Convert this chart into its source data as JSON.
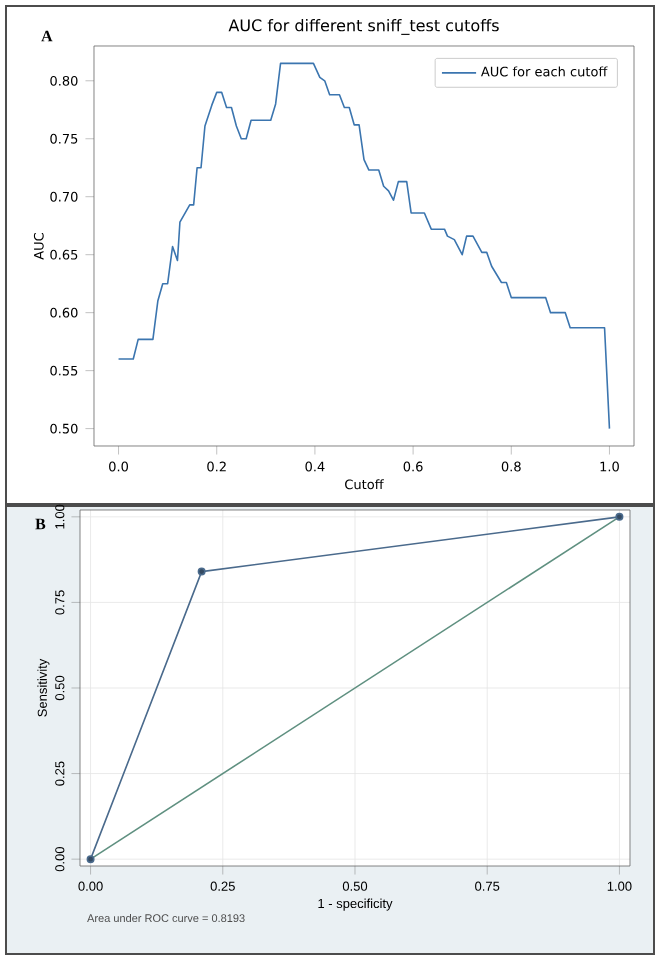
{
  "chart_data": [
    {
      "type": "line",
      "title": "AUC for different sniff_test cutoffs",
      "xlabel": "Cutoff",
      "ylabel": "AUC",
      "annotations": [
        "A"
      ],
      "xlim": [
        -0.05,
        1.05
      ],
      "ylim": [
        0.485,
        0.83
      ],
      "xticks": [
        {
          "value": 0,
          "label": "0.0"
        },
        {
          "value": 0.2,
          "label": "0.2"
        },
        {
          "value": 0.4,
          "label": "0.4"
        },
        {
          "value": 0.6,
          "label": "0.6"
        },
        {
          "value": 0.8,
          "label": "0.8"
        },
        {
          "value": 1,
          "label": "1.0"
        }
      ],
      "yticks": [
        {
          "value": 0.5,
          "label": "0.50"
        },
        {
          "value": 0.55,
          "label": "0.55"
        },
        {
          "value": 0.6,
          "label": "0.60"
        },
        {
          "value": 0.65,
          "label": "0.65"
        },
        {
          "value": 0.7,
          "label": "0.70"
        },
        {
          "value": 0.75,
          "label": "0.75"
        },
        {
          "value": 0.8,
          "label": "0.80"
        }
      ],
      "legend": "top right",
      "series": [
        {
          "name": "AUC for each cutoff",
          "color": "#3b75af",
          "x": [
            0,
            0.03,
            0.04,
            0.07,
            0.08,
            0.09,
            0.1,
            0.11,
            0.12,
            0.125,
            0.145,
            0.153,
            0.16,
            0.168,
            0.176,
            0.19,
            0.2,
            0.21,
            0.22,
            0.23,
            0.24,
            0.25,
            0.26,
            0.27,
            0.31,
            0.32,
            0.33,
            0.397,
            0.41,
            0.42,
            0.43,
            0.45,
            0.46,
            0.47,
            0.48,
            0.49,
            0.5,
            0.51,
            0.53,
            0.54,
            0.55,
            0.56,
            0.57,
            0.587,
            0.596,
            0.623,
            0.637,
            0.664,
            0.67,
            0.684,
            0.7,
            0.709,
            0.722,
            0.74,
            0.75,
            0.76,
            0.78,
            0.79,
            0.8,
            0.87,
            0.88,
            0.91,
            0.92,
            0.99,
            1.0
          ],
          "values": [
            0.56,
            0.56,
            0.577,
            0.577,
            0.61,
            0.625,
            0.625,
            0.657,
            0.645,
            0.678,
            0.693,
            0.693,
            0.725,
            0.725,
            0.761,
            0.779,
            0.79,
            0.79,
            0.777,
            0.777,
            0.761,
            0.75,
            0.75,
            0.766,
            0.766,
            0.78,
            0.815,
            0.815,
            0.803,
            0.8,
            0.788,
            0.788,
            0.777,
            0.777,
            0.762,
            0.762,
            0.732,
            0.723,
            0.723,
            0.709,
            0.705,
            0.697,
            0.713,
            0.713,
            0.686,
            0.686,
            0.672,
            0.672,
            0.666,
            0.663,
            0.65,
            0.666,
            0.666,
            0.652,
            0.652,
            0.64,
            0.626,
            0.626,
            0.613,
            0.613,
            0.6,
            0.6,
            0.587,
            0.587,
            0.5
          ]
        }
      ]
    },
    {
      "type": "line",
      "xlabel": "1 - specificity",
      "ylabel": "Sensitivity",
      "annotations": [
        "B",
        "Area under ROC curve = 0.8193"
      ],
      "xlim": [
        -0.02,
        1.02
      ],
      "ylim": [
        -0.02,
        1.02
      ],
      "xticks": [
        {
          "value": 0,
          "label": "0.00"
        },
        {
          "value": 0.25,
          "label": "0.25"
        },
        {
          "value": 0.5,
          "label": "0.50"
        },
        {
          "value": 0.75,
          "label": "0.75"
        },
        {
          "value": 1,
          "label": "1.00"
        }
      ],
      "yticks": [
        {
          "value": 0,
          "label": "0.00"
        },
        {
          "value": 0.25,
          "label": "0.25"
        },
        {
          "value": 0.5,
          "label": "0.50"
        },
        {
          "value": 0.75,
          "label": "0.75"
        },
        {
          "value": 1,
          "label": "1.00"
        }
      ],
      "grid": true,
      "series": [
        {
          "color": "#4a6a8c",
          "marker": "circle",
          "x": [
            0,
            0.21,
            1
          ],
          "values": [
            0,
            0.84,
            1
          ]
        },
        {
          "color": "#5f9080",
          "x": [
            0,
            1
          ],
          "values": [
            0,
            1
          ]
        }
      ]
    }
  ]
}
